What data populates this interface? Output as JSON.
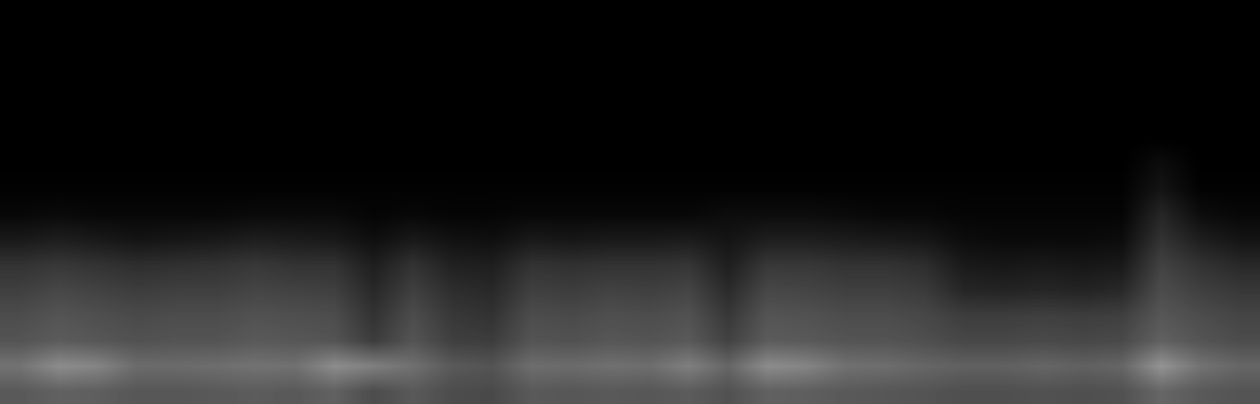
{
  "chart_data": {
    "type": "heatmap",
    "color": "gray",
    "tick_labels": false,
    "value_range": [
      0,
      1
    ],
    "cells": [
      [
        0,
        0,
        0,
        0,
        0,
        0,
        0,
        0,
        0,
        0,
        0,
        0,
        0,
        0,
        0,
        0,
        0,
        0,
        0,
        0,
        0,
        0,
        0,
        0,
        0,
        0,
        0,
        0,
        0,
        0,
        0,
        0
      ],
      [
        0,
        0,
        0,
        0,
        0,
        0,
        0,
        0,
        0,
        0,
        0,
        0,
        0,
        0,
        0,
        0,
        0,
        0,
        0,
        0,
        0,
        0,
        0,
        0,
        0,
        0,
        0,
        0,
        0,
        0,
        0,
        0
      ],
      [
        0,
        0,
        0,
        0,
        0,
        0,
        0,
        0,
        0,
        0,
        0,
        0,
        0,
        0,
        0,
        0,
        0,
        0,
        0,
        0,
        0,
        0,
        0,
        0,
        0,
        0,
        0,
        0,
        0,
        0,
        0,
        0
      ],
      [
        0,
        0,
        0,
        0,
        0,
        0,
        0,
        0,
        0,
        0,
        0,
        0,
        0,
        0,
        0,
        0,
        0,
        0,
        0,
        0,
        0,
        0,
        0,
        0,
        0,
        0,
        0,
        0,
        0,
        0,
        0,
        0
      ],
      [
        0,
        0,
        0,
        0,
        0,
        0,
        0,
        0,
        0,
        0,
        0,
        0,
        0,
        0,
        0,
        0,
        0,
        0,
        0,
        0,
        0,
        0,
        0,
        0,
        0,
        0,
        0,
        0,
        0,
        0,
        0,
        0
      ],
      [
        0,
        0,
        0,
        0,
        0,
        0,
        0,
        0,
        0,
        0,
        0,
        0,
        0,
        0,
        0,
        0,
        0,
        0,
        0,
        0,
        0,
        0,
        0,
        0,
        0,
        0,
        0,
        0,
        0,
        0,
        0,
        0
      ],
      [
        0,
        0,
        0,
        0,
        0,
        0,
        0,
        0,
        0,
        0,
        0,
        0,
        0,
        0,
        0,
        0,
        0,
        0,
        0,
        0,
        0,
        0,
        0,
        0,
        0,
        0,
        0,
        0,
        0,
        0.05,
        0,
        0
      ],
      [
        0.01,
        0.01,
        0.01,
        0.01,
        0.01,
        0.01,
        0.01,
        0.01,
        0.01,
        0.01,
        0.01,
        0.01,
        0.01,
        0.01,
        0.01,
        0.01,
        0.01,
        0.01,
        0.01,
        0.01,
        0.01,
        0.01,
        0.01,
        0.01,
        0.01,
        0.01,
        0.01,
        0.01,
        0.01,
        0.08,
        0.01,
        0.01
      ],
      [
        0.03,
        0.04,
        0.03,
        0.03,
        0.03,
        0.03,
        0.04,
        0.04,
        0.04,
        0.02,
        0.03,
        0.02,
        0.02,
        0.03,
        0.03,
        0.03,
        0.03,
        0.03,
        0.05,
        0.05,
        0.05,
        0.04,
        0.03,
        0.03,
        0.02,
        0.02,
        0.02,
        0.02,
        0.02,
        0.15,
        0.05,
        0.03
      ],
      [
        0.1,
        0.12,
        0.1,
        0.08,
        0.09,
        0.1,
        0.12,
        0.11,
        0.1,
        0.06,
        0.1,
        0.07,
        0.06,
        0.1,
        0.09,
        0.1,
        0.1,
        0.11,
        0.08,
        0.12,
        0.12,
        0.11,
        0.1,
        0.09,
        0.05,
        0.04,
        0.04,
        0.04,
        0.05,
        0.2,
        0.12,
        0.08
      ],
      [
        0.2,
        0.22,
        0.2,
        0.18,
        0.19,
        0.2,
        0.22,
        0.2,
        0.2,
        0.12,
        0.2,
        0.13,
        0.12,
        0.2,
        0.19,
        0.2,
        0.2,
        0.21,
        0.12,
        0.22,
        0.22,
        0.2,
        0.2,
        0.18,
        0.1,
        0.09,
        0.1,
        0.09,
        0.1,
        0.26,
        0.2,
        0.16
      ],
      [
        0.25,
        0.28,
        0.26,
        0.24,
        0.25,
        0.25,
        0.27,
        0.26,
        0.25,
        0.16,
        0.25,
        0.18,
        0.16,
        0.25,
        0.24,
        0.26,
        0.25,
        0.27,
        0.17,
        0.28,
        0.27,
        0.25,
        0.25,
        0.23,
        0.15,
        0.14,
        0.15,
        0.14,
        0.16,
        0.3,
        0.25,
        0.22
      ],
      [
        0.3,
        0.33,
        0.31,
        0.29,
        0.3,
        0.3,
        0.32,
        0.31,
        0.3,
        0.2,
        0.3,
        0.22,
        0.2,
        0.3,
        0.29,
        0.31,
        0.3,
        0.32,
        0.22,
        0.33,
        0.32,
        0.3,
        0.3,
        0.28,
        0.24,
        0.24,
        0.25,
        0.24,
        0.25,
        0.34,
        0.3,
        0.27
      ],
      [
        0.33,
        0.36,
        0.34,
        0.32,
        0.33,
        0.33,
        0.35,
        0.34,
        0.33,
        0.24,
        0.33,
        0.25,
        0.24,
        0.33,
        0.32,
        0.34,
        0.33,
        0.35,
        0.26,
        0.36,
        0.35,
        0.33,
        0.33,
        0.31,
        0.28,
        0.28,
        0.29,
        0.28,
        0.29,
        0.38,
        0.33,
        0.3
      ],
      [
        0.45,
        0.55,
        0.52,
        0.42,
        0.42,
        0.43,
        0.45,
        0.44,
        0.55,
        0.5,
        0.44,
        0.35,
        0.33,
        0.43,
        0.42,
        0.44,
        0.43,
        0.5,
        0.4,
        0.55,
        0.52,
        0.44,
        0.43,
        0.4,
        0.38,
        0.38,
        0.4,
        0.38,
        0.4,
        0.58,
        0.45,
        0.4
      ],
      [
        0.35,
        0.38,
        0.37,
        0.34,
        0.34,
        0.35,
        0.36,
        0.35,
        0.38,
        0.3,
        0.35,
        0.3,
        0.29,
        0.35,
        0.34,
        0.35,
        0.34,
        0.36,
        0.32,
        0.38,
        0.37,
        0.35,
        0.34,
        0.33,
        0.31,
        0.31,
        0.32,
        0.31,
        0.32,
        0.4,
        0.35,
        0.33
      ]
    ]
  }
}
